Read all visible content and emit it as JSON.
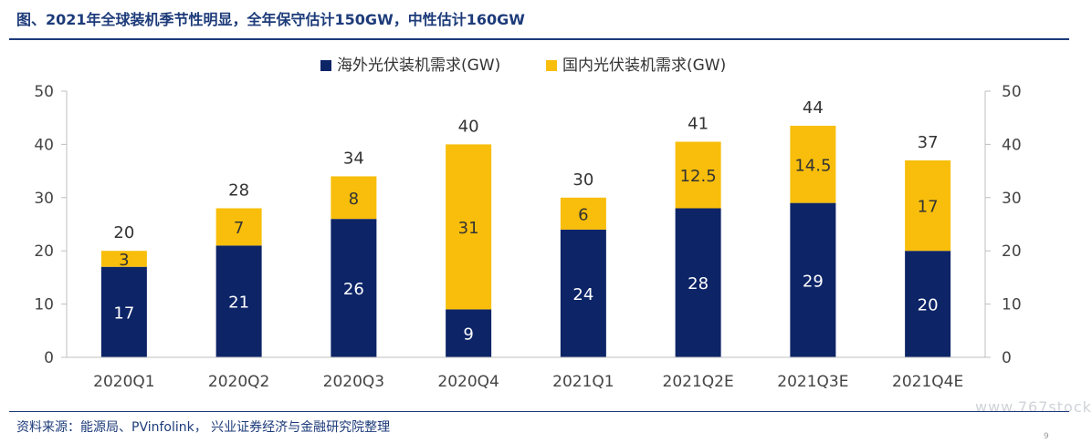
{
  "header": {
    "title": "图、2021年全球装机季节性明显，全年保守估计150GW，中性估计160GW"
  },
  "footer": {
    "source": "资料来源：能源局、PVinfolink， 兴业证券经济与金融研究院整理",
    "watermark": "www.767stock",
    "page_number": "9"
  },
  "colors": {
    "overseas": "#0d2467",
    "domestic": "#f8be0b",
    "axis": "#bfbfbf",
    "title": "#1d3b7a"
  },
  "chart_data": {
    "type": "bar",
    "stacked": true,
    "categories": [
      "2020Q1",
      "2020Q2",
      "2020Q3",
      "2020Q4",
      "2021Q1",
      "2021Q2E",
      "2021Q3E",
      "2021Q4E"
    ],
    "series": [
      {
        "name": "海外光伏装机需求(GW)",
        "values": [
          17,
          21,
          26,
          9,
          24,
          28,
          29,
          20
        ],
        "labels": [
          "17",
          "21",
          "26",
          "9",
          "24",
          "28",
          "29",
          "20"
        ]
      },
      {
        "name": "国内光伏装机需求(GW)",
        "values": [
          3,
          7,
          8,
          31,
          6,
          12.5,
          14.5,
          17
        ],
        "labels": [
          "3",
          "7",
          "8",
          "31",
          "6",
          "12.5",
          "14.5",
          "17"
        ]
      }
    ],
    "totals": [
      20,
      28,
      34,
      40,
      30,
      41,
      44,
      37
    ],
    "total_labels": [
      "20",
      "28",
      "34",
      "40",
      "30",
      "41",
      "44",
      "37"
    ],
    "ylim": [
      0,
      50
    ],
    "yticks": [
      "0",
      "10",
      "20",
      "30",
      "40",
      "50"
    ],
    "y2ticks": [
      "0",
      "10",
      "20",
      "30",
      "40",
      "50"
    ],
    "legend_position": "top-center",
    "grid": false
  }
}
